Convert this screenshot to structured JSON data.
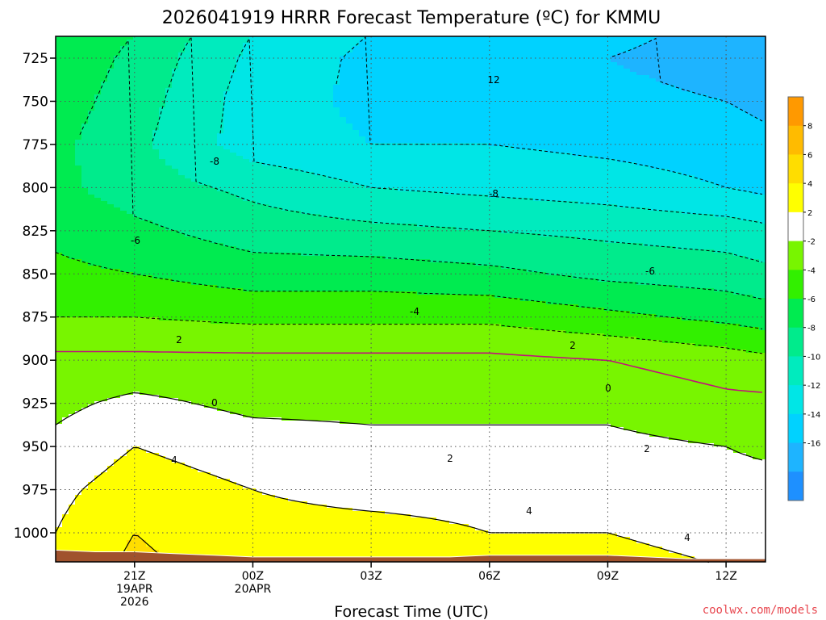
{
  "chart_data": {
    "type": "contour",
    "title": "2026041919 HRRR Forecast Temperature (ºC) for KMMU",
    "xlabel": "Forecast Time (UTC)",
    "ylabel": "",
    "credit": "coolwx.com/models",
    "x_ticks": [
      {
        "hour": 2,
        "lines": [
          "21Z",
          "19APR",
          "2026"
        ]
      },
      {
        "hour": 5,
        "lines": [
          "00Z",
          "20APR"
        ]
      },
      {
        "hour": 8,
        "lines": [
          "03Z"
        ]
      },
      {
        "hour": 11,
        "lines": [
          "06Z"
        ]
      },
      {
        "hour": 14,
        "lines": [
          "09Z"
        ]
      },
      {
        "hour": 17,
        "lines": [
          "12Z"
        ]
      }
    ],
    "xlim_hours": [
      0,
      18
    ],
    "y_ticks": [
      725,
      750,
      775,
      800,
      825,
      850,
      875,
      900,
      925,
      950,
      975,
      1000
    ],
    "ylim_hPa": [
      712,
      1017
    ],
    "grid": true,
    "colorbar": {
      "position": "right",
      "levels": [
        -18,
        -16,
        -14,
        -12,
        -10,
        -8,
        -6,
        -4,
        -2,
        2,
        4,
        6,
        8,
        10
      ],
      "labels": [
        "8",
        "6",
        "4",
        "2",
        "-2",
        "-4",
        "-6",
        "-8",
        "-10",
        "-12",
        "-14",
        "-16"
      ],
      "colors": [
        "#1e90ff",
        "#1eb4ff",
        "#00d2ff",
        "#00e6e6",
        "#00ebbe",
        "#00eb8c",
        "#00eb50",
        "#32f000",
        "#78f500",
        "#ffffff",
        "#ffff00",
        "#ffdd00",
        "#ffbb00",
        "#ff9900"
      ]
    },
    "surface_pressure_hPa": [
      1010,
      1011,
      1011,
      1012,
      1013,
      1014,
      1014,
      1014,
      1014,
      1014,
      1014,
      1013,
      1013,
      1013,
      1013,
      1014,
      1015,
      1015,
      1015
    ],
    "temperature_profiles_C": {
      "pressure_levels_hPa": [
        710,
        725,
        750,
        775,
        800,
        825,
        850,
        875,
        900,
        925,
        950,
        975,
        1000,
        1020
      ],
      "hours": [
        0,
        2,
        5,
        8,
        11,
        14,
        17,
        18
      ],
      "values": [
        [
          -4.0,
          -4.5,
          -5.0,
          -5.5,
          -5.5,
          -4.5,
          -3.5,
          -2.0,
          0.5,
          1.5,
          2.5,
          3.5,
          4.0,
          4.5
        ],
        [
          -6.0,
          -6.5,
          -7.0,
          -7.5,
          -7.0,
          -5.5,
          -4.0,
          -2.0,
          0.5,
          2.5,
          4.0,
          5.0,
          6.0,
          6.5
        ],
        [
          -10.0,
          -10.5,
          -11.0,
          -11.0,
          -8.5,
          -7.0,
          -5.0,
          -2.5,
          0.5,
          1.5,
          3.0,
          4.0,
          4.5,
          5.0
        ],
        [
          -12.0,
          -12.5,
          -12.5,
          -12.0,
          -10.0,
          -7.5,
          -5.0,
          -2.5,
          0.5,
          1.5,
          2.5,
          3.5,
          4.5,
          5.0
        ],
        [
          -12.5,
          -13.0,
          -12.5,
          -12.0,
          -10.5,
          -8.0,
          -5.5,
          -2.5,
          0.5,
          1.5,
          2.5,
          3.5,
          4.0,
          4.5
        ],
        [
          -13.0,
          -14.0,
          -13.0,
          -12.5,
          -11.0,
          -8.5,
          -6.5,
          -3.5,
          0.0,
          1.5,
          2.5,
          3.5,
          4.0,
          4.5
        ],
        [
          -15.0,
          -15.5,
          -14.0,
          -13.0,
          -12.0,
          -9.0,
          -7.0,
          -4.5,
          -1.0,
          0.5,
          2.0,
          3.0,
          3.5,
          4.0
        ],
        [
          -15.5,
          -16.0,
          -14.5,
          -13.5,
          -12.5,
          -9.5,
          -7.5,
          -5.0,
          -1.5,
          0.5,
          1.5,
          3.0,
          3.5,
          4.0
        ]
      ]
    },
    "contour_labels": [
      "12",
      "-8",
      "-6",
      "-8",
      "-6",
      "-4",
      "2",
      "2",
      "0",
      "0",
      "4",
      "2",
      "2",
      "4",
      "4"
    ]
  }
}
